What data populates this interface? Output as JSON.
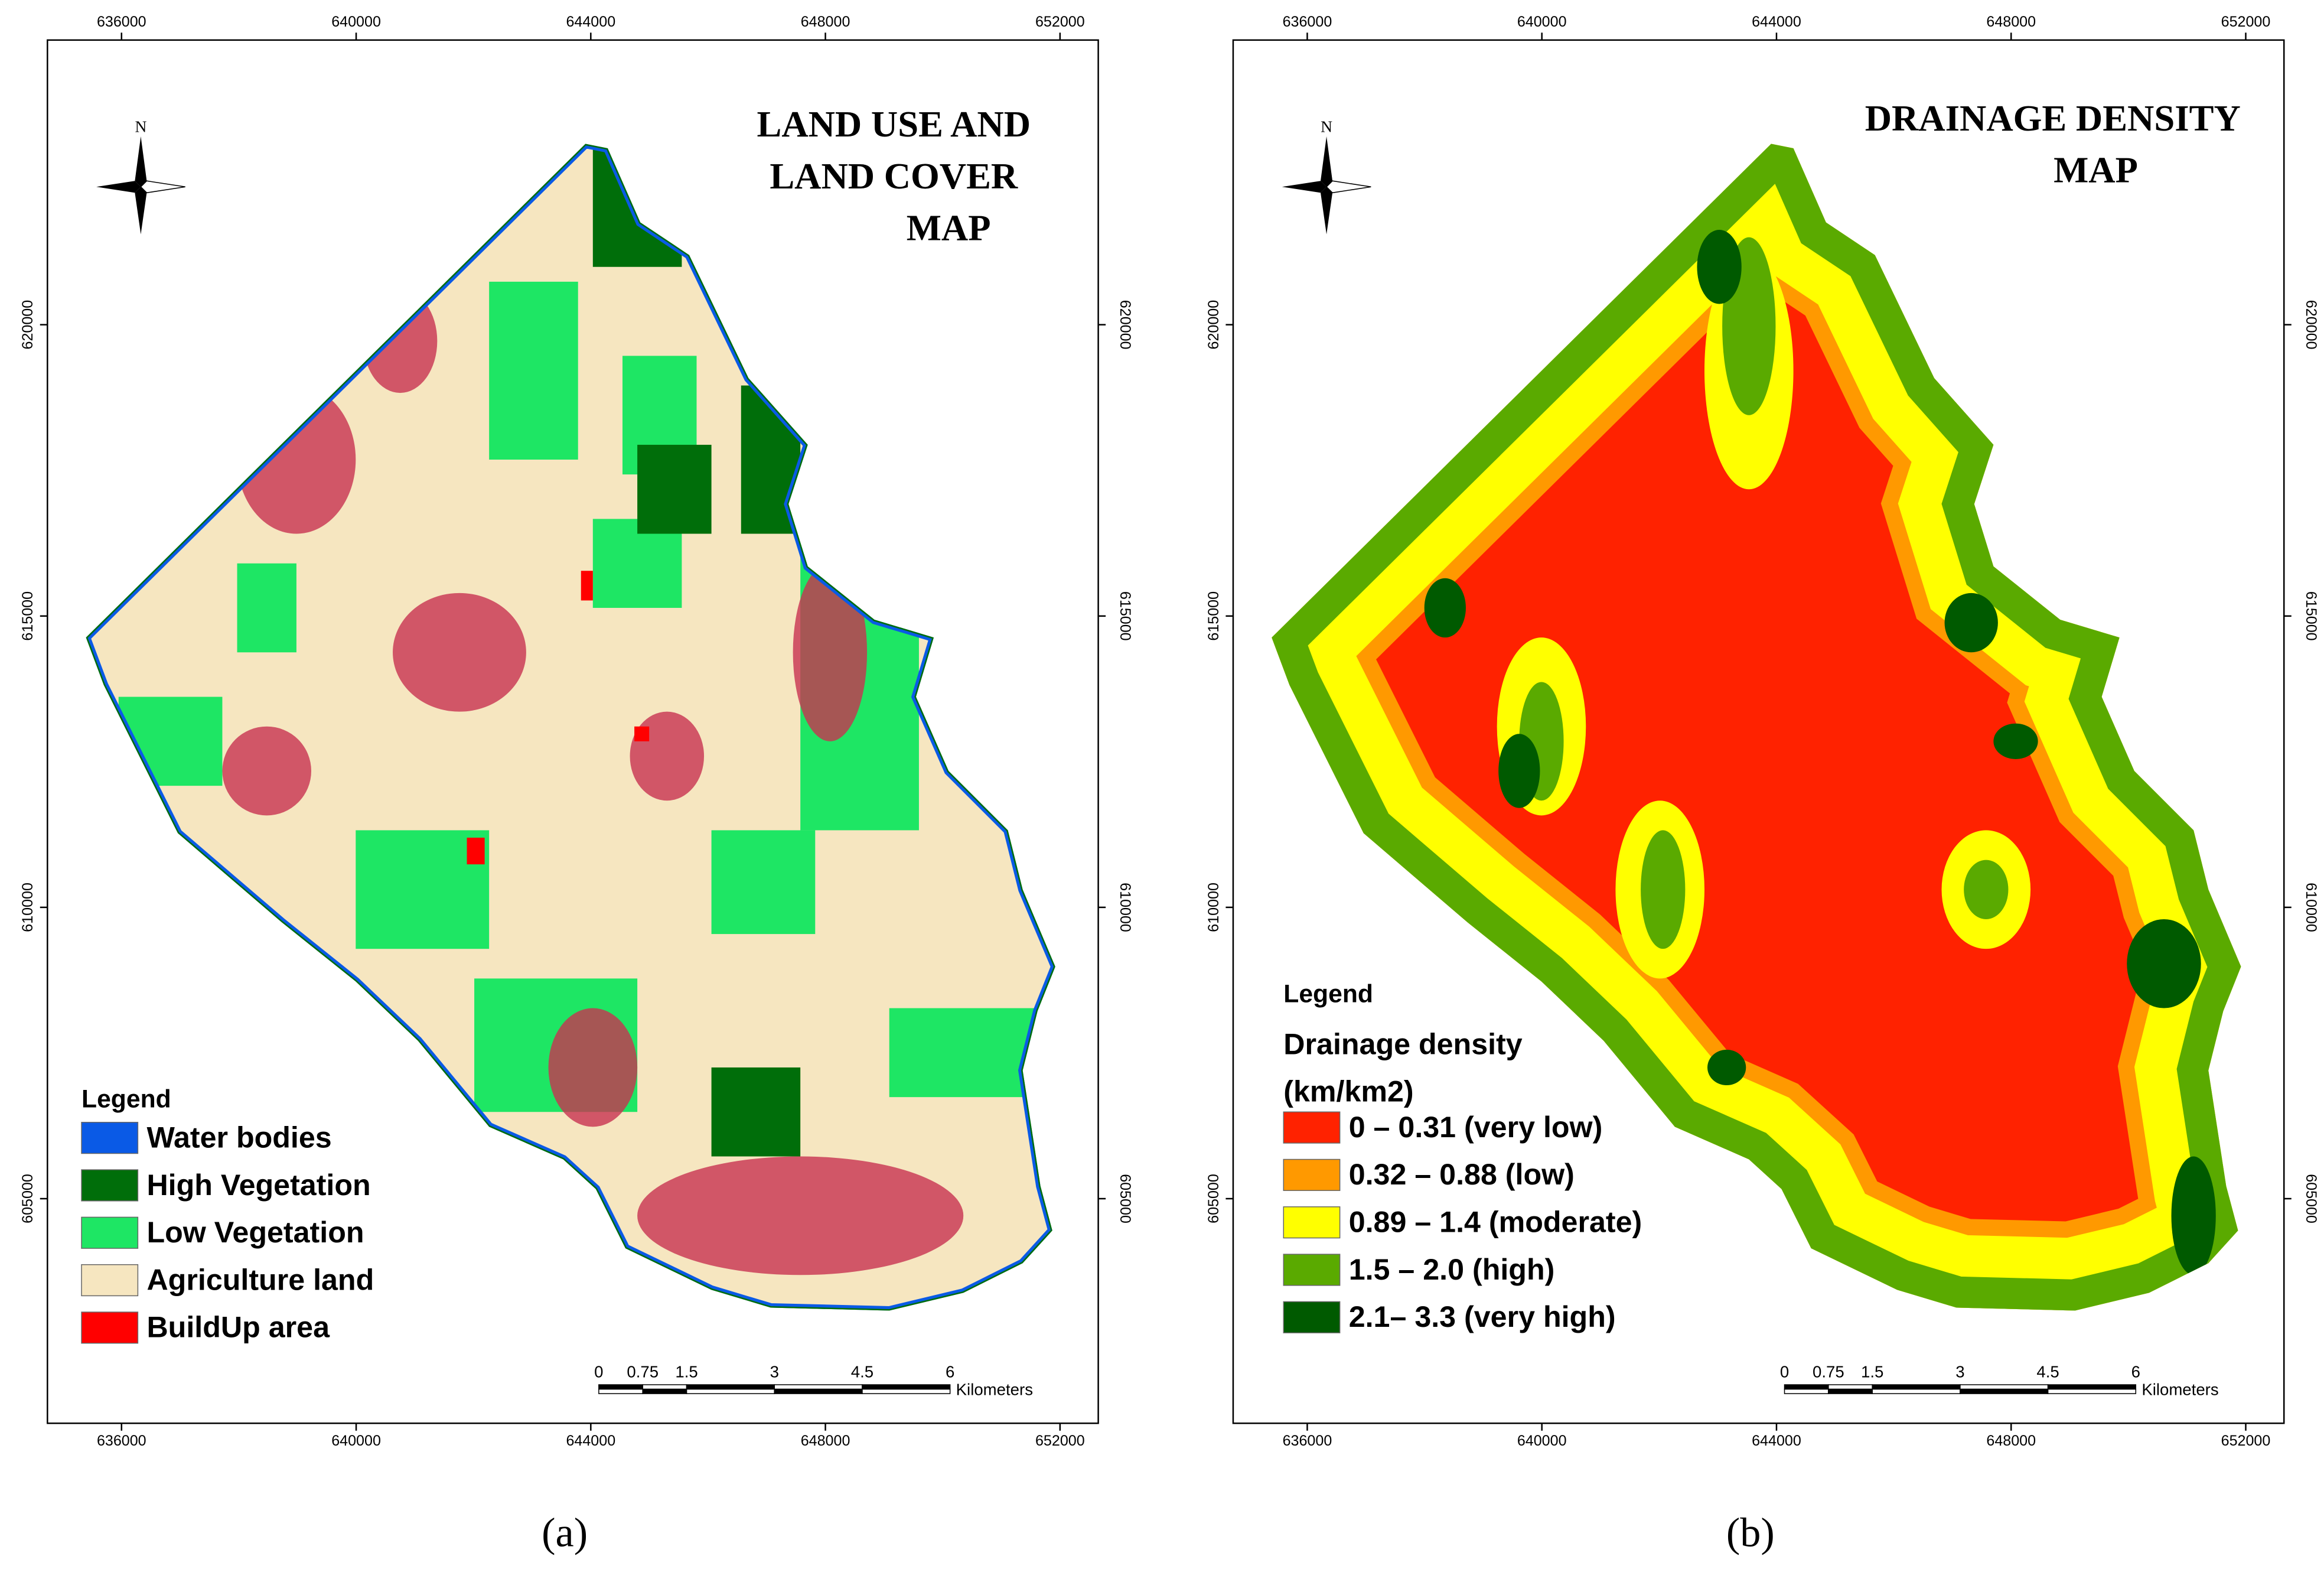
{
  "panels": [
    {
      "title_lines": [
        "LAND USE AND",
        "LAND COVER",
        "MAP"
      ],
      "north": "N",
      "x_ticks": [
        636000,
        640000,
        644000,
        648000,
        652000
      ],
      "y_ticks": [
        620000,
        615000,
        610000,
        605000
      ],
      "legend": {
        "title": "Legend",
        "items": [
          {
            "label": "Water bodies",
            "color": "#0a5ae6"
          },
          {
            "label": "High Vegetation",
            "color": "#006e0a"
          },
          {
            "label": "Low Vegetation",
            "color": "#1ee664"
          },
          {
            "label": "Agriculture land",
            "color": "#f6e6c0"
          },
          {
            "label": "BuildUp area",
            "color": "#ff0000"
          }
        ]
      },
      "scale_bar": {
        "ticks": [
          0,
          0.75,
          1.5,
          3,
          4.5,
          6
        ],
        "unit": "Kilometers"
      },
      "label": "(a)"
    },
    {
      "title_lines": [
        "DRAINAGE DENSITY",
        "MAP"
      ],
      "north": "N",
      "x_ticks": [
        636000,
        640000,
        644000,
        648000,
        652000
      ],
      "y_ticks": [
        620000,
        615000,
        610000,
        605000
      ],
      "legend": {
        "title": "Legend",
        "subtitle_lines": [
          "Drainage density",
          "(km/km2)"
        ],
        "items": [
          {
            "label": "0 – 0.31 (very low)",
            "color": "#ff2200"
          },
          {
            "label": "0.32 – 0.88 (low)",
            "color": "#ff9900"
          },
          {
            "label": "0.89 – 1.4 (moderate)",
            "color": "#ffff00"
          },
          {
            "label": "1.5 – 2.0 (high)",
            "color": "#5aaa00"
          },
          {
            "label": "2.1– 3.3 (very high)",
            "color": "#005a00"
          }
        ]
      },
      "scale_bar": {
        "ticks": [
          0,
          0.75,
          1.5,
          3,
          4.5,
          6
        ],
        "unit": "Kilometers"
      },
      "label": "(b)"
    }
  ]
}
